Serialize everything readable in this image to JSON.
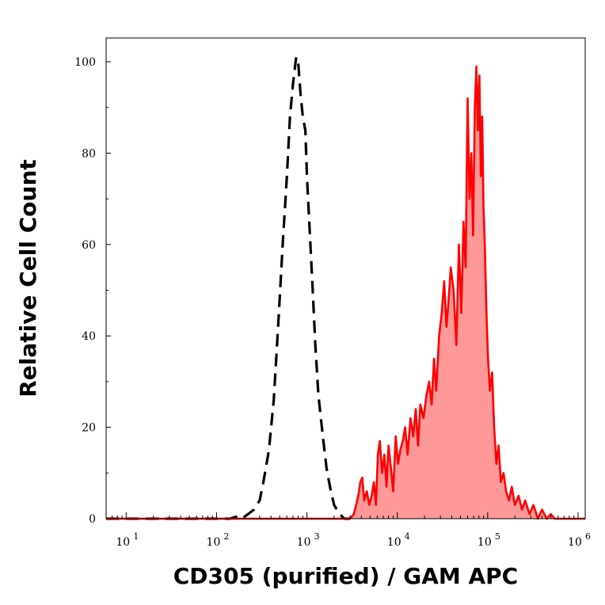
{
  "chart_data": {
    "type": "area",
    "xlabel": "CD305 (purified) / GAM APC",
    "ylabel": "Relative Cell Count",
    "x_scale": "log",
    "xlim": [
      6,
      1200000
    ],
    "ylim": [
      0,
      105
    ],
    "x_ticks": [
      {
        "value": 10,
        "base": "10",
        "exp": "1"
      },
      {
        "value": 100,
        "base": "10",
        "exp": "2"
      },
      {
        "value": 1000,
        "base": "10",
        "exp": "3"
      },
      {
        "value": 10000,
        "base": "10",
        "exp": "4"
      },
      {
        "value": 100000,
        "base": "10",
        "exp": "5"
      },
      {
        "value": 1000000,
        "base": "10",
        "exp": "6"
      }
    ],
    "y_ticks": [
      0,
      20,
      40,
      60,
      80,
      100
    ],
    "y_tick_labels": [
      "0",
      "20",
      "40",
      "60",
      "80",
      "100"
    ],
    "grid": false,
    "legend": "none",
    "series": [
      {
        "role": "control",
        "style": "dashed",
        "color": "#000000",
        "x": [
          6,
          140,
          170,
          200,
          260,
          300,
          330,
          380,
          430,
          480,
          540,
          600,
          650,
          700,
          760,
          800,
          850,
          900,
          960,
          1000,
          1080,
          1160,
          1240,
          1340,
          1500,
          1650,
          1800,
          2000,
          2300,
          2600,
          3000
        ],
        "y": [
          0,
          0,
          0.5,
          0.3,
          2,
          4,
          8,
          15,
          26,
          42,
          60,
          75,
          88,
          95,
          101,
          100,
          93,
          88,
          85,
          75,
          62,
          50,
          38,
          27,
          18,
          11,
          7,
          3,
          1,
          0,
          0
        ]
      },
      {
        "role": "stained",
        "style": "solid-filled",
        "color": "#ff0000",
        "fill": "#ff9999",
        "x": [
          6,
          3000,
          3300,
          3500,
          3700,
          3900,
          4100,
          4300,
          4600,
          4900,
          5200,
          5500,
          5800,
          6100,
          6400,
          6800,
          7200,
          7600,
          8000,
          8500,
          9000,
          9600,
          10200,
          10800,
          11500,
          12200,
          13000,
          14000,
          15000,
          16000,
          17000,
          18000,
          19500,
          21000,
          22500,
          24000,
          25500,
          27000,
          29000,
          31000,
          33000,
          35000,
          37000,
          39000,
          42000,
          45000,
          48000,
          51000,
          54000,
          57000,
          60000,
          63000,
          66000,
          69000,
          72000,
          75000,
          78000,
          81000,
          84000,
          87000,
          90000,
          93000,
          97000,
          101000,
          106000,
          112000,
          118000,
          125000,
          132000,
          140000,
          150000,
          160000,
          172000,
          185000,
          200000,
          220000,
          240000,
          260000,
          290000,
          320000,
          360000,
          400000,
          450000,
          500000,
          550000,
          700000,
          1200000
        ],
        "y": [
          0,
          0,
          1,
          3,
          5,
          8,
          9,
          4,
          6,
          3,
          5,
          8,
          3,
          14,
          17,
          10,
          14,
          7,
          16,
          11,
          6,
          18,
          12,
          15,
          17,
          20,
          14,
          22,
          18,
          24,
          16,
          25,
          22,
          27,
          30,
          25,
          35,
          28,
          40,
          45,
          52,
          42,
          48,
          55,
          50,
          38,
          60,
          45,
          65,
          55,
          92,
          70,
          80,
          62,
          90,
          99,
          85,
          97,
          75,
          88,
          68,
          60,
          45,
          35,
          28,
          32,
          20,
          12,
          16,
          8,
          10,
          6,
          4,
          7,
          3,
          5,
          2,
          4,
          1,
          3,
          0,
          2,
          0,
          1,
          0,
          0,
          0
        ]
      }
    ]
  }
}
